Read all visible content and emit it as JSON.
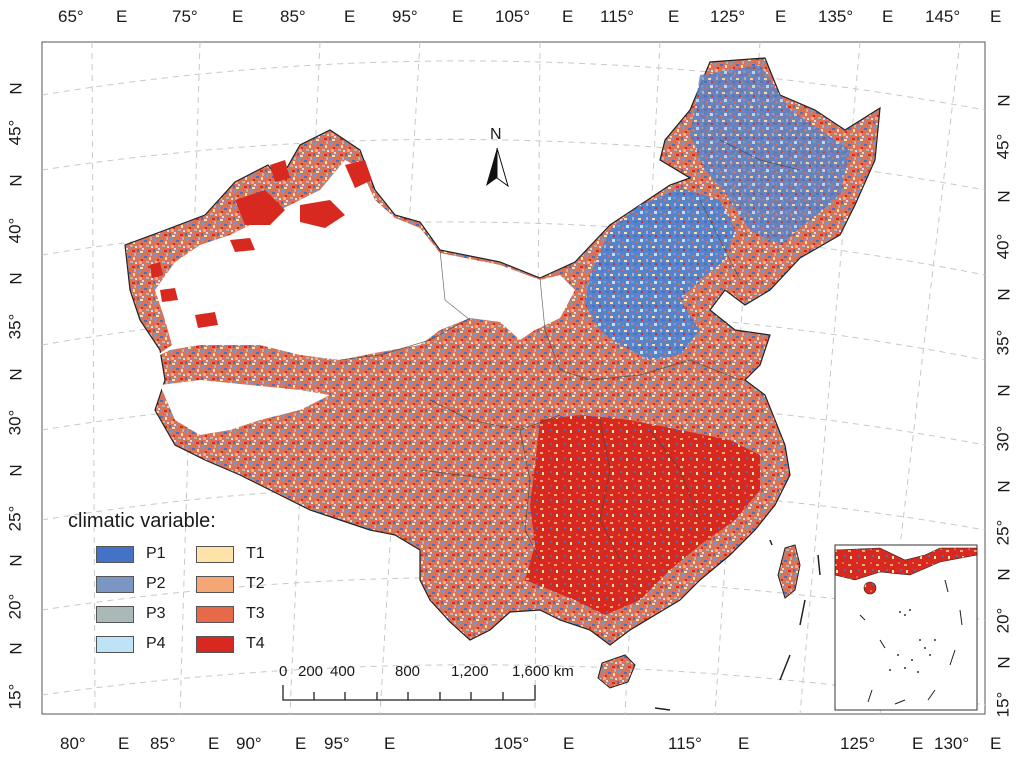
{
  "map": {
    "top_lon_labels": [
      "65°",
      "E",
      "75°",
      "E",
      "85°",
      "E",
      "95°",
      "E",
      "105°",
      "E",
      "115°",
      "E",
      "125°",
      "E",
      "135°",
      "E",
      "145°",
      "E"
    ],
    "bottom_lon_labels": [
      "80°",
      "E",
      "85°",
      "E",
      "90°",
      "E",
      "95°",
      "E",
      "105°",
      "E",
      "115°",
      "E",
      "125°",
      "E",
      "130°",
      "E"
    ],
    "left_lat_labels": [
      "N",
      "45°",
      "N",
      "40°",
      "N",
      "35°",
      "N",
      "30°",
      "N",
      "25°",
      "N",
      "20°",
      "N",
      "15°"
    ],
    "right_lat_labels": [
      "N",
      "45°",
      "N",
      "40°",
      "N",
      "35°",
      "N",
      "30°",
      "N",
      "25°",
      "N",
      "20°",
      "N",
      "15°"
    ],
    "north_arrow": "N",
    "scale_bar": {
      "labels": [
        "0",
        "200",
        "400",
        "800",
        "1,200",
        "1,600 km"
      ]
    },
    "legend": {
      "title": "climatic variable:",
      "items": [
        {
          "label": "P1",
          "color": "#4472c4"
        },
        {
          "label": "P2",
          "color": "#7b96c3"
        },
        {
          "label": "P3",
          "color": "#a9b9b8"
        },
        {
          "label": "P4",
          "color": "#bfe3f6"
        },
        {
          "label": "T1",
          "color": "#fde3a7"
        },
        {
          "label": "T2",
          "color": "#f4a675"
        },
        {
          "label": "T3",
          "color": "#e8684a"
        },
        {
          "label": "T4",
          "color": "#d7291f"
        }
      ]
    }
  }
}
